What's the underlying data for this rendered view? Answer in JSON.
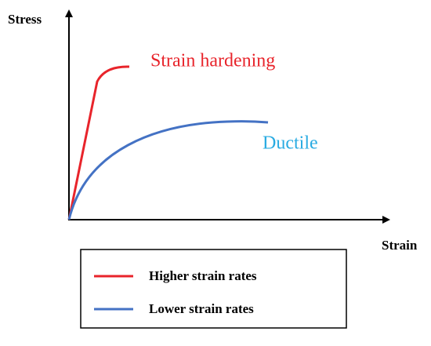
{
  "axes": {
    "y_label": "Stress",
    "x_label": "Strain"
  },
  "annotations": {
    "upper_curve": "Strain hardening",
    "lower_curve": "Ductile"
  },
  "legend": {
    "items": [
      "Higher strain rates",
      "Lower strain rates"
    ]
  }
}
